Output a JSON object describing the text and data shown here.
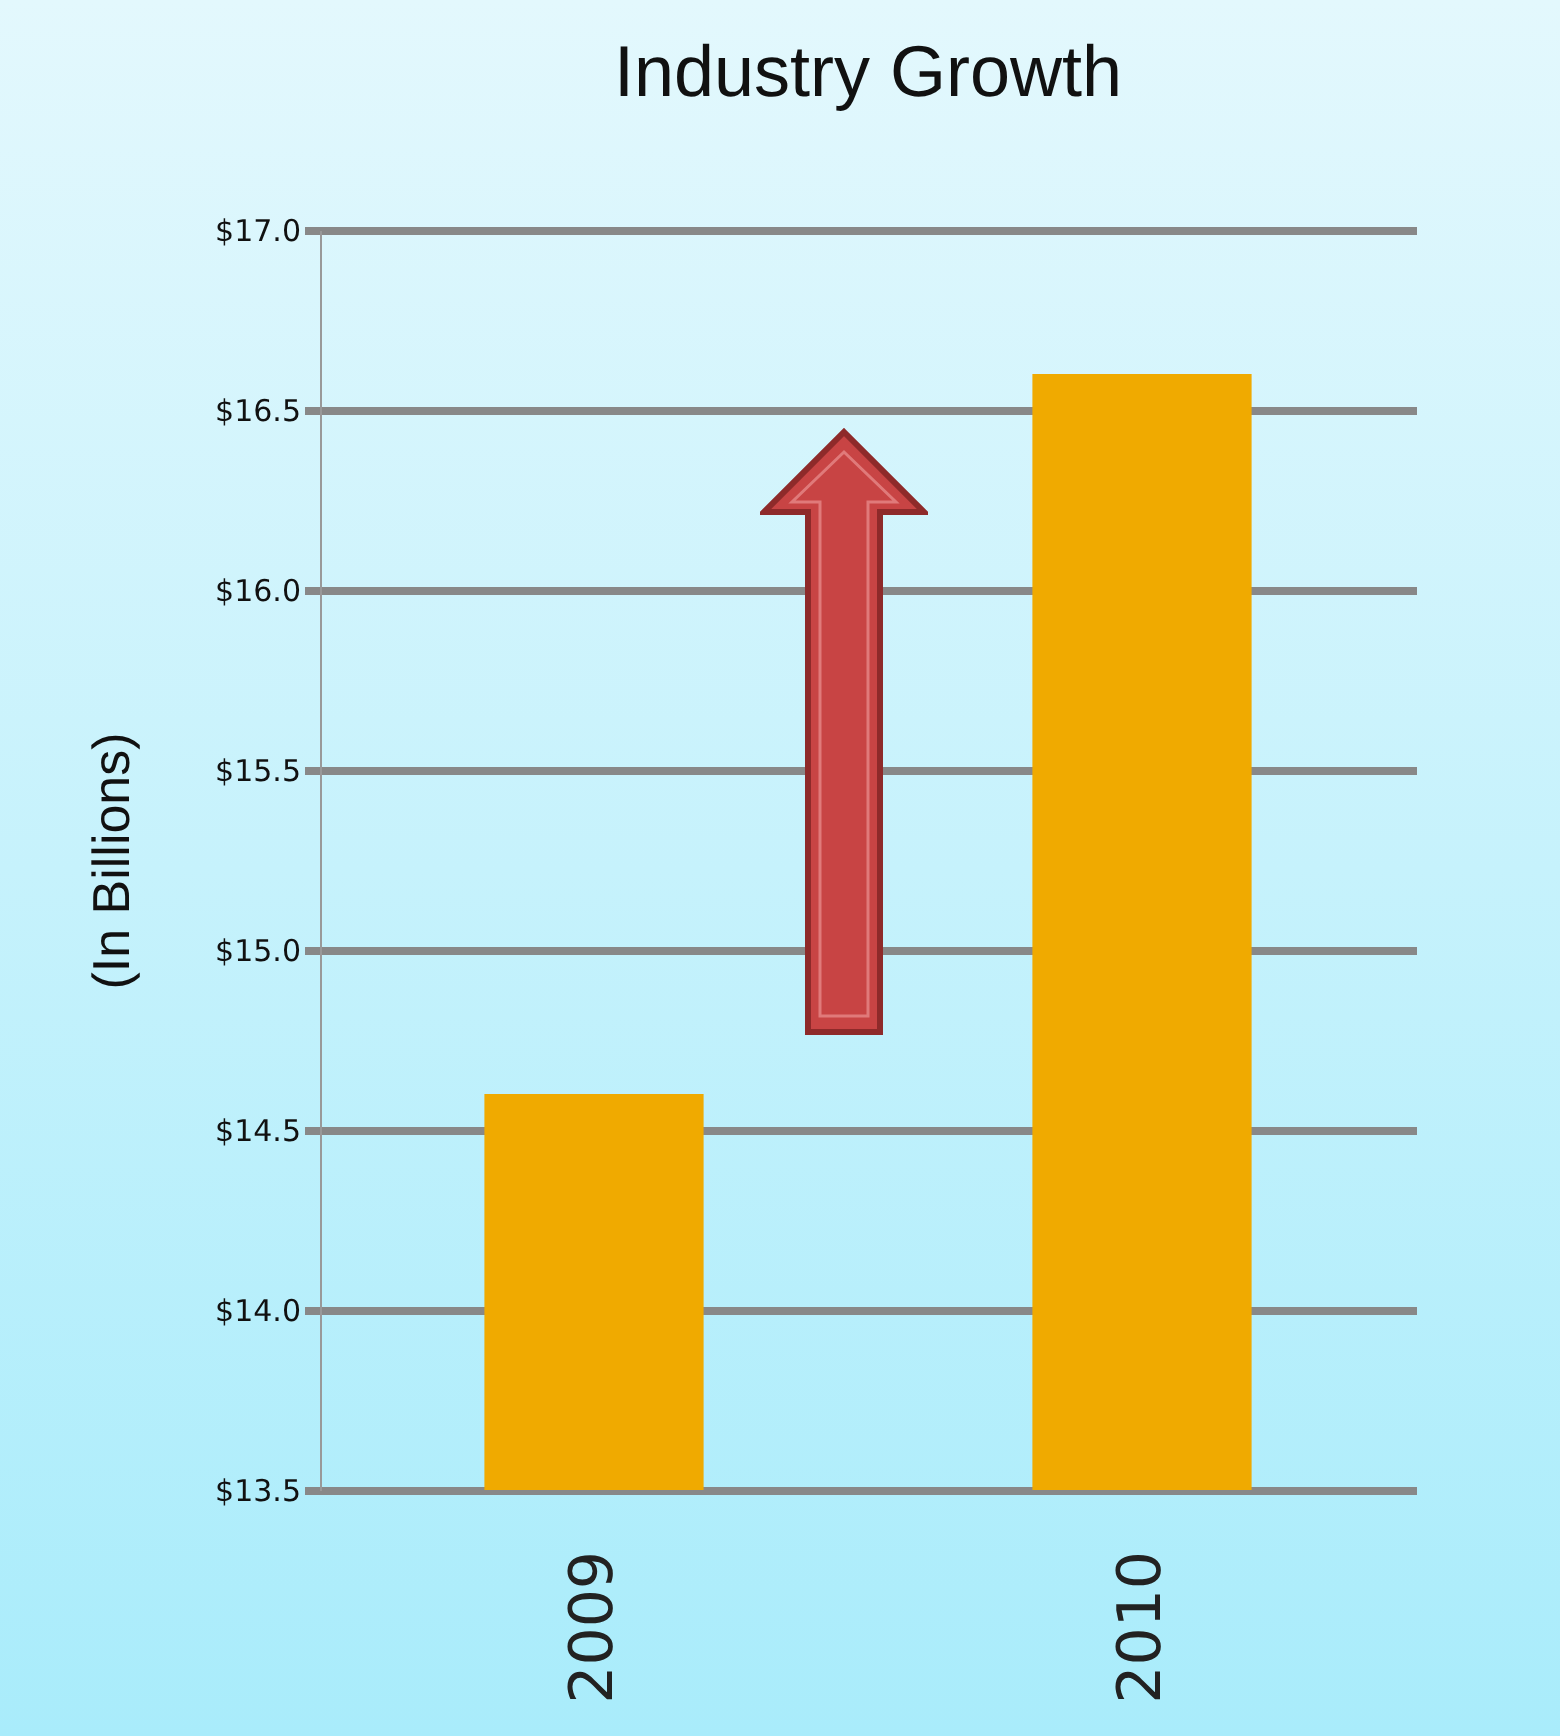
{
  "chart_data": {
    "type": "bar",
    "title": "Industry Growth",
    "ylabel": "(In Billions)",
    "categories": [
      "2009",
      "2010"
    ],
    "values": [
      14.6,
      16.6
    ],
    "color": "#f0aa00",
    "ylim": [
      13.5,
      17.0
    ],
    "yticks": [
      {
        "value": 13.5,
        "label": "$13.5"
      },
      {
        "value": 14.0,
        "label": "$14.0"
      },
      {
        "value": 14.5,
        "label": "$14.5"
      },
      {
        "value": 15.0,
        "label": "$15.0"
      },
      {
        "value": 15.5,
        "label": "$15.5"
      },
      {
        "value": 16.0,
        "label": "$16.0"
      },
      {
        "value": 16.5,
        "label": "$16.5"
      },
      {
        "value": 17.0,
        "label": "$17.0"
      }
    ],
    "grid": "y"
  }
}
